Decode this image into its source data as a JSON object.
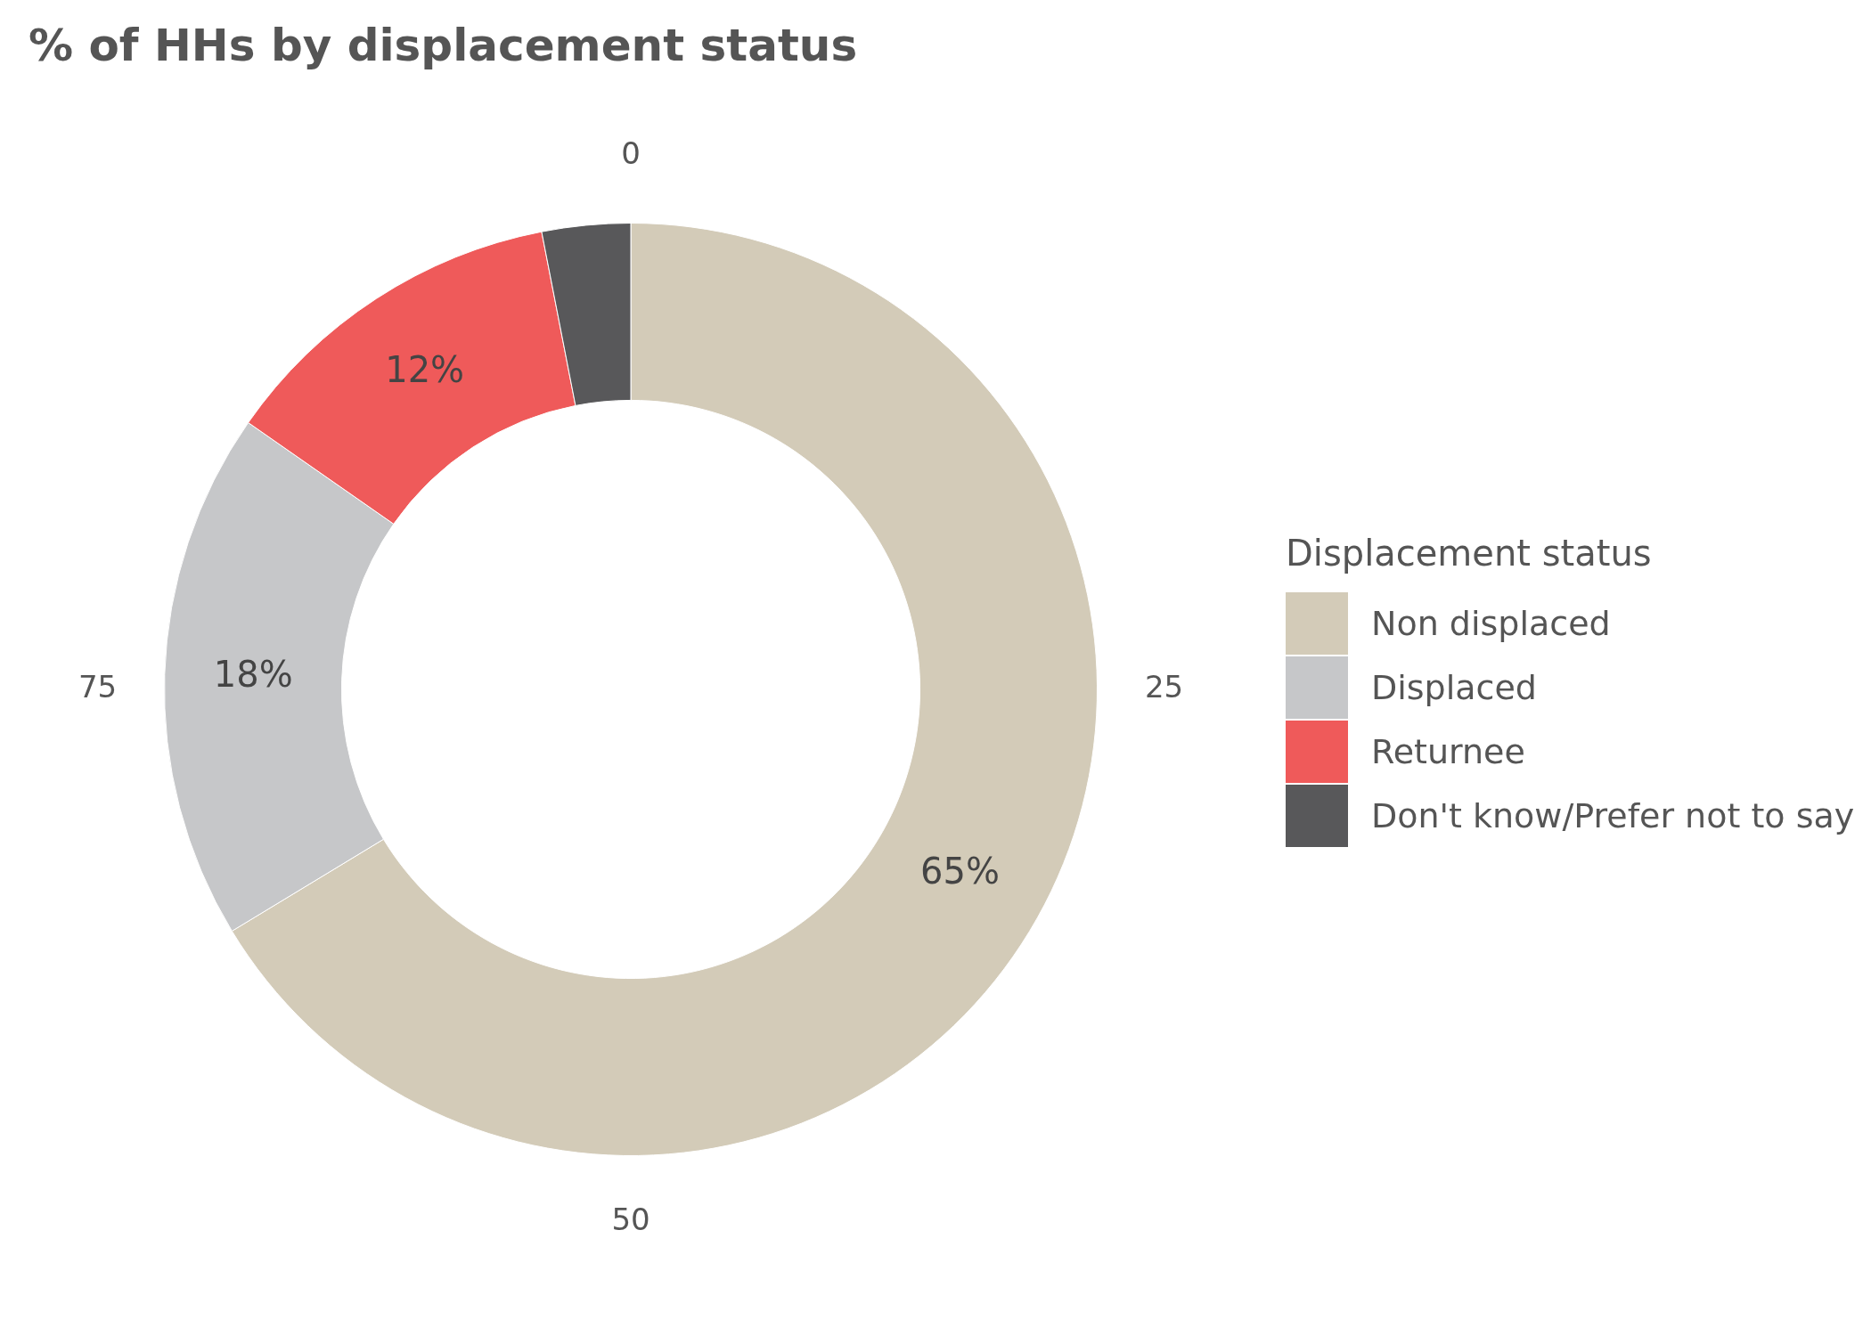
{
  "chart_data": {
    "type": "donut",
    "title": "% of HHs by displacement status",
    "legend_title": "Displacement status",
    "categories": [
      "Non displaced",
      "Displaced",
      "Returnee",
      "Don't know/Prefer not to say"
    ],
    "values": [
      65,
      18,
      12,
      3
    ],
    "colors": [
      "#d3cbb8",
      "#c6c7c9",
      "#ef5a5a",
      "#58585a"
    ],
    "value_labels": [
      "65%",
      "18%",
      "12%",
      null
    ],
    "annotations": [
      "0",
      "25",
      "50",
      "75"
    ],
    "legend": "right"
  }
}
